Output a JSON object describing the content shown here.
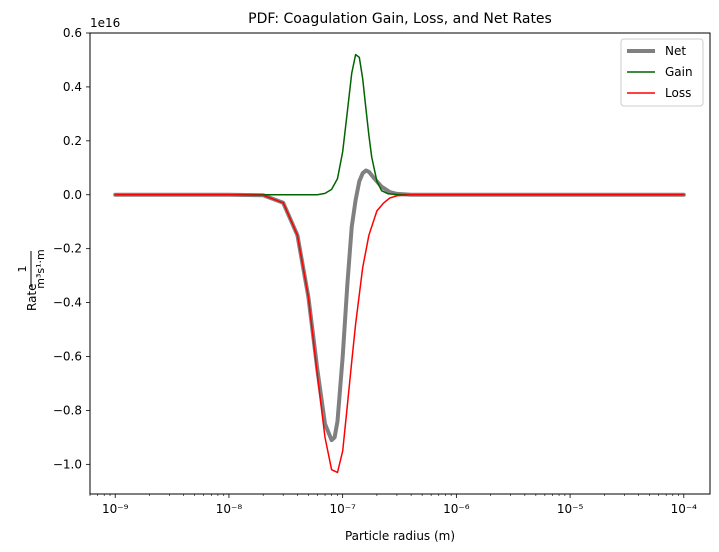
{
  "chart_data": {
    "type": "line",
    "title": "PDF: Coagulation Gain, Loss, and Net Rates",
    "xlabel": "Particle radius (m)",
    "ylabel": "Rate",
    "ylabel_unit_fraction": {
      "numerator": "1",
      "denominator": "m³s¹·m"
    },
    "offset_text": "1e16",
    "x_scale": "log",
    "xlim": [
      6e-10,
      0.00017
    ],
    "ylim": [
      -1.11,
      0.6
    ],
    "y_scale_factor": "1e16",
    "x_ticks": [
      1e-09,
      1e-08,
      1e-07,
      1e-06,
      1e-05,
      0.0001
    ],
    "x_tick_labels": [
      "10⁻⁹",
      "10⁻⁸",
      "10⁻⁷",
      "10⁻⁶",
      "10⁻⁵",
      "10⁻⁴"
    ],
    "y_ticks": [
      0.6,
      0.4,
      0.2,
      0.0,
      -0.2,
      -0.4,
      -0.6,
      -0.8,
      -1.0
    ],
    "y_tick_labels": [
      "0.6",
      "0.4",
      "0.2",
      "0.0",
      "−0.2",
      "−0.4",
      "−0.6",
      "−0.8",
      "−1.0"
    ],
    "grid": false,
    "legend_position": "top-right",
    "series": [
      {
        "name": "Net",
        "color": "#808080",
        "x": [
          1e-09,
          1e-08,
          2e-08,
          3e-08,
          4e-08,
          5e-08,
          6e-08,
          7e-08,
          8e-08,
          8.5e-08,
          9e-08,
          1e-07,
          1.1e-07,
          1.2e-07,
          1.3e-07,
          1.4e-07,
          1.5e-07,
          1.6e-07,
          1.7e-07,
          1.9e-07,
          2.2e-07,
          2.6e-07,
          3e-07,
          4e-07,
          1e-06,
          1e-05,
          0.0001
        ],
        "y": [
          0,
          0,
          -0.002,
          -0.03,
          -0.15,
          -0.38,
          -0.65,
          -0.85,
          -0.91,
          -0.9,
          -0.84,
          -0.6,
          -0.33,
          -0.12,
          -0.02,
          0.05,
          0.08,
          0.09,
          0.085,
          0.06,
          0.03,
          0.01,
          0.003,
          0,
          0,
          0,
          0
        ]
      },
      {
        "name": "Gain",
        "color": "#006400",
        "x": [
          1e-09,
          1e-08,
          4e-08,
          6e-08,
          7e-08,
          8e-08,
          9e-08,
          1e-07,
          1.1e-07,
          1.2e-07,
          1.3e-07,
          1.4e-07,
          1.5e-07,
          1.6e-07,
          1.7e-07,
          1.8e-07,
          2e-07,
          2.2e-07,
          2.5e-07,
          3e-07,
          4e-07,
          1e-06,
          1e-05,
          0.0001
        ],
        "y": [
          0,
          0,
          0,
          0,
          0.005,
          0.02,
          0.06,
          0.16,
          0.31,
          0.45,
          0.52,
          0.51,
          0.43,
          0.32,
          0.22,
          0.14,
          0.05,
          0.015,
          0.004,
          0.001,
          0,
          0,
          0,
          0
        ]
      },
      {
        "name": "Loss",
        "color": "#ff0000",
        "x": [
          1e-09,
          1e-08,
          2e-08,
          3e-08,
          4e-08,
          5e-08,
          6e-08,
          7e-08,
          8e-08,
          9e-08,
          1e-07,
          1.1e-07,
          1.2e-07,
          1.3e-07,
          1.5e-07,
          1.7e-07,
          2e-07,
          2.3e-07,
          2.6e-07,
          3e-07,
          4e-07,
          1e-06,
          1e-05,
          0.0001
        ],
        "y": [
          0,
          0,
          -0.002,
          -0.03,
          -0.15,
          -0.38,
          -0.67,
          -0.9,
          -1.02,
          -1.03,
          -0.95,
          -0.78,
          -0.62,
          -0.48,
          -0.27,
          -0.15,
          -0.06,
          -0.03,
          -0.012,
          -0.004,
          0,
          0,
          0,
          0
        ]
      }
    ]
  }
}
